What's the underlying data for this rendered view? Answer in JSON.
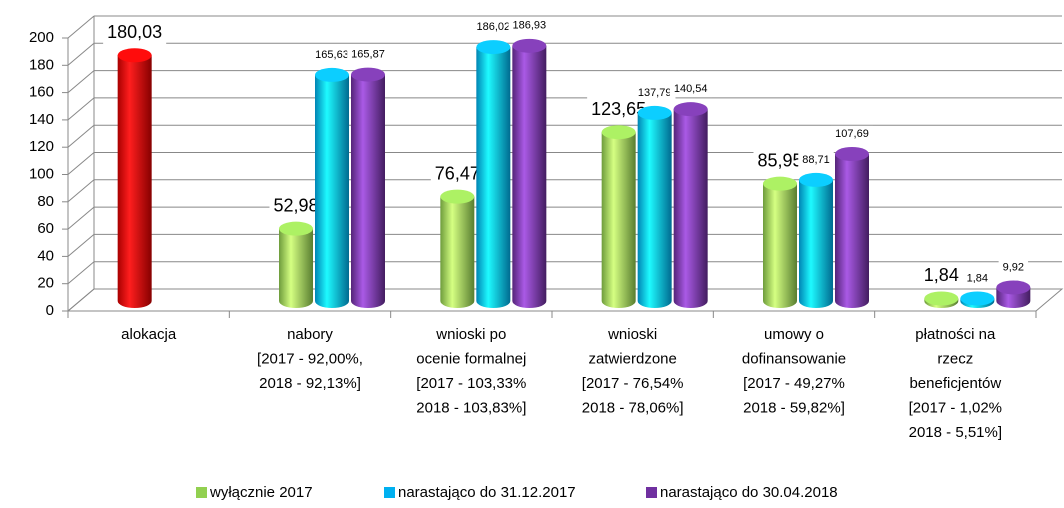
{
  "chart_data": {
    "type": "bar3d",
    "categories": [
      [
        "alokacja"
      ],
      [
        "nabory",
        "[2017 - 92,00%,",
        "2018 - 92,13%]"
      ],
      [
        "wnioski po",
        "ocenie formalnej",
        "[2017 - 103,33%",
        "2018 - 103,83%]"
      ],
      [
        "wnioski",
        "zatwierdzone",
        "[2017 - 76,54%",
        "2018 - 78,06%]"
      ],
      [
        "umowy o",
        "dofinansowanie",
        "[2017 - 49,27%",
        "2018 - 59,82%]"
      ],
      [
        "płatności na",
        "rzecz",
        "beneficjentów",
        "[2017 - 1,02%",
        "2018 - 5,51%]"
      ]
    ],
    "series": [
      {
        "name": "wyłącznie 2017",
        "color": "#92d050",
        "point_colors": [
          "#e00000",
          null,
          null,
          null,
          null,
          null
        ],
        "values": [
          180.03,
          52.98,
          76.47,
          123.65,
          85.95,
          1.84
        ],
        "value_labels": [
          "180,03",
          "52,98",
          "76,47",
          "123,65",
          "85,95",
          "1,84"
        ]
      },
      {
        "name": "narastająco do 31.12.2017",
        "color": "#00b0f0",
        "values": [
          null,
          165.63,
          186.02,
          137.79,
          88.71,
          1.84
        ],
        "value_labels": [
          null,
          "165,63",
          "186,02",
          "137,79",
          "88,71",
          "1,84"
        ]
      },
      {
        "name": "narastająco do 30.04.2018",
        "color": "#7030a0",
        "values": [
          null,
          165.87,
          186.93,
          140.54,
          107.69,
          9.92
        ],
        "value_labels": [
          null,
          "165,87",
          "186,93",
          "140,54",
          "107,69",
          "9,92"
        ]
      }
    ],
    "ylim": [
      0,
      200
    ],
    "yticks": [
      0,
      20,
      40,
      60,
      80,
      100,
      120,
      140,
      160,
      180,
      200
    ],
    "grid": true,
    "legend": "bottom"
  }
}
